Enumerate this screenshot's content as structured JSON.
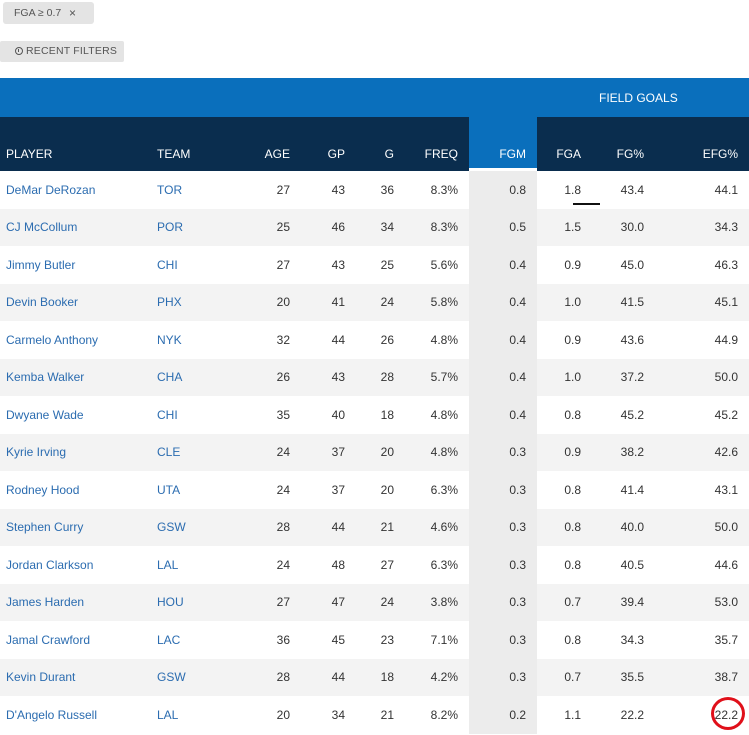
{
  "filter_chip": {
    "label": "FGA ≥ 0.7",
    "close": "×"
  },
  "recent_filters": {
    "label": "RECENT FILTERS",
    "icon": "clock-icon"
  },
  "table": {
    "group_header": "FIELD GOALS",
    "columns": [
      "PLAYER",
      "TEAM",
      "AGE",
      "GP",
      "G",
      "FREQ",
      "FGM",
      "FGA",
      "FG%",
      "EFG%"
    ],
    "rows": [
      [
        "DeMar DeRozan",
        "TOR",
        "27",
        "43",
        "36",
        "8.3%",
        "0.8",
        "1.8",
        "43.4",
        "44.1"
      ],
      [
        "CJ McCollum",
        "POR",
        "25",
        "46",
        "34",
        "8.3%",
        "0.5",
        "1.5",
        "30.0",
        "34.3"
      ],
      [
        "Jimmy Butler",
        "CHI",
        "27",
        "43",
        "25",
        "5.6%",
        "0.4",
        "0.9",
        "45.0",
        "46.3"
      ],
      [
        "Devin Booker",
        "PHX",
        "20",
        "41",
        "24",
        "5.8%",
        "0.4",
        "1.0",
        "41.5",
        "45.1"
      ],
      [
        "Carmelo Anthony",
        "NYK",
        "32",
        "44",
        "26",
        "4.8%",
        "0.4",
        "0.9",
        "43.6",
        "44.9"
      ],
      [
        "Kemba Walker",
        "CHA",
        "26",
        "43",
        "28",
        "5.7%",
        "0.4",
        "1.0",
        "37.2",
        "50.0"
      ],
      [
        "Dwyane Wade",
        "CHI",
        "35",
        "40",
        "18",
        "4.8%",
        "0.4",
        "0.8",
        "45.2",
        "45.2"
      ],
      [
        "Kyrie Irving",
        "CLE",
        "24",
        "37",
        "20",
        "4.8%",
        "0.3",
        "0.9",
        "38.2",
        "42.6"
      ],
      [
        "Rodney Hood",
        "UTA",
        "24",
        "37",
        "20",
        "6.3%",
        "0.3",
        "0.8",
        "41.4",
        "43.1"
      ],
      [
        "Stephen Curry",
        "GSW",
        "28",
        "44",
        "21",
        "4.6%",
        "0.3",
        "0.8",
        "40.0",
        "50.0"
      ],
      [
        "Jordan Clarkson",
        "LAL",
        "24",
        "48",
        "27",
        "6.3%",
        "0.3",
        "0.8",
        "40.5",
        "44.6"
      ],
      [
        "James Harden",
        "HOU",
        "27",
        "47",
        "24",
        "3.8%",
        "0.3",
        "0.7",
        "39.4",
        "53.0"
      ],
      [
        "Jamal Crawford",
        "LAC",
        "36",
        "45",
        "23",
        "7.1%",
        "0.3",
        "0.8",
        "34.3",
        "35.7"
      ],
      [
        "Kevin Durant",
        "GSW",
        "28",
        "44",
        "18",
        "4.2%",
        "0.3",
        "0.7",
        "35.5",
        "38.7"
      ],
      [
        "D'Angelo Russell",
        "LAL",
        "20",
        "34",
        "21",
        "8.2%",
        "0.2",
        "1.1",
        "22.2",
        "22.2"
      ]
    ]
  },
  "colors": {
    "group_header_bg": "#0a6fbc",
    "column_header_bg": "#0a2d4e",
    "link": "#2b6cb0",
    "annotation_circle": "#e0101a"
  }
}
